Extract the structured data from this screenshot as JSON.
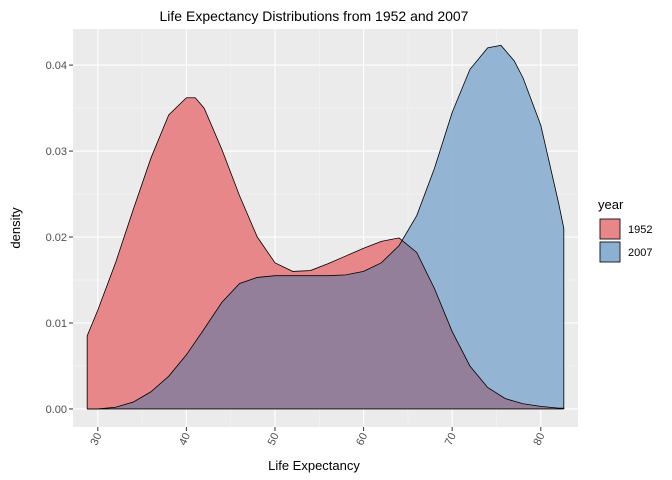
{
  "chart_data": {
    "type": "area",
    "title": "Life Expectancy Distributions from 1952 and 2007",
    "xlabel": "Life Expectancy",
    "ylabel": "density",
    "xlim": [
      27.2,
      84.2
    ],
    "ylim": [
      -0.0021,
      0.0442
    ],
    "x_ticks": [
      30,
      40,
      50,
      60,
      70,
      80
    ],
    "y_ticks": [
      0.0,
      0.01,
      0.02,
      0.03,
      0.04
    ],
    "y_tick_labels": [
      "0.00",
      "0.01",
      "0.02",
      "0.03",
      "0.04"
    ],
    "x_tick_rotation": -65,
    "grid": true,
    "panel_background": "#ebebeb",
    "legend": {
      "title": "year",
      "position": "right"
    },
    "series": [
      {
        "name": "1952",
        "color": "#f8766d",
        "fill": "#e8878a",
        "x": [
          28.8,
          30,
          32,
          34,
          36,
          38,
          40,
          41,
          42,
          44,
          46,
          48,
          50,
          52,
          54,
          56,
          58,
          60,
          62,
          64,
          66,
          68,
          70,
          72,
          74,
          76,
          78,
          80,
          82,
          82.6
        ],
        "y": [
          0.0085,
          0.0115,
          0.017,
          0.0232,
          0.0292,
          0.0342,
          0.0362,
          0.0362,
          0.035,
          0.0302,
          0.0248,
          0.02,
          0.017,
          0.016,
          0.0161,
          0.0169,
          0.0178,
          0.0187,
          0.0195,
          0.0199,
          0.0182,
          0.014,
          0.009,
          0.005,
          0.0025,
          0.0012,
          0.0006,
          0.0003,
          0.0001,
          0.0001
        ]
      },
      {
        "name": "2007",
        "color": "#00bfc4",
        "fill": "#8bb0d0",
        "x": [
          28.8,
          30,
          32,
          34,
          36,
          38,
          40,
          42,
          44,
          46,
          48,
          50,
          52,
          54,
          56,
          58,
          60,
          62,
          64,
          66,
          68,
          70,
          72,
          74,
          75.5,
          77,
          78,
          80,
          82,
          82.6
        ],
        "y": [
          0.0,
          0.0,
          0.0002,
          0.0008,
          0.002,
          0.0038,
          0.0063,
          0.0093,
          0.0124,
          0.0146,
          0.0153,
          0.0155,
          0.0155,
          0.0155,
          0.0155,
          0.0156,
          0.016,
          0.017,
          0.019,
          0.0225,
          0.028,
          0.0345,
          0.0395,
          0.042,
          0.0423,
          0.0405,
          0.0385,
          0.033,
          0.024,
          0.021
        ]
      }
    ],
    "overlap_fill": "#947f9b"
  }
}
